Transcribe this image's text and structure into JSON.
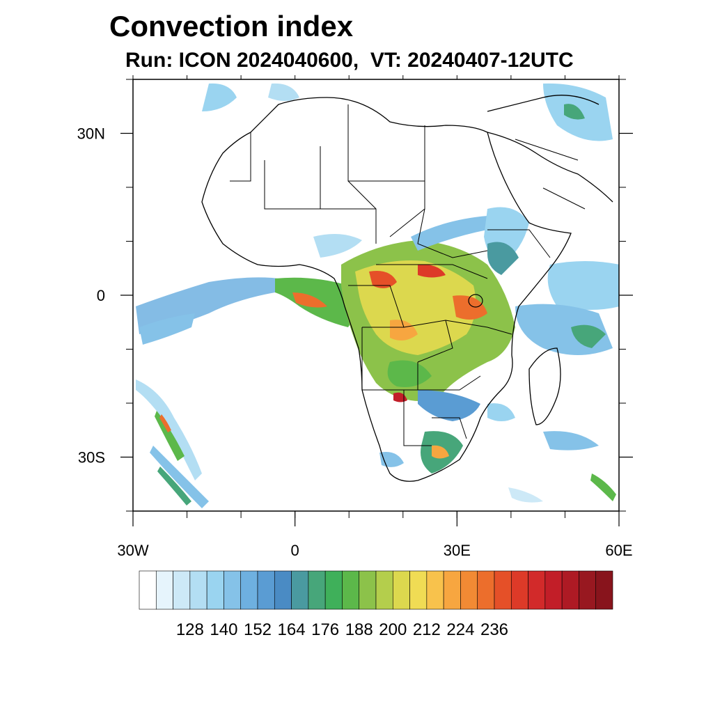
{
  "title": "Convection index",
  "subtitle": "Run: ICON 2024040600,  VT: 20240407-12UTC",
  "map": {
    "lon_range": [
      -30,
      60
    ],
    "lat_range": [
      -40,
      40
    ],
    "lat_ticks": [
      {
        "value": 30,
        "label": "30N"
      },
      {
        "value": 0,
        "label": "0"
      },
      {
        "value": -30,
        "label": "30S"
      }
    ],
    "lon_ticks": [
      {
        "value": -30,
        "label": "30W"
      },
      {
        "value": 0,
        "label": "0"
      },
      {
        "value": 30,
        "label": "30E"
      },
      {
        "value": 60,
        "label": "60E"
      }
    ]
  },
  "colorbar": {
    "colors": [
      "#ffffff",
      "#e6f4fc",
      "#cde9f7",
      "#b3def3",
      "#9ad4f0",
      "#85c2e8",
      "#6eb0e0",
      "#5a9cd3",
      "#4a8bc4",
      "#4a9aa0",
      "#47a67a",
      "#3fb05a",
      "#5cb84a",
      "#8cc24a",
      "#b4ce4c",
      "#dcd84e",
      "#f0dc54",
      "#f8c24c",
      "#f7a640",
      "#f28a34",
      "#ec6e2c",
      "#e55028",
      "#dd3a28",
      "#d22a2a",
      "#c21e28",
      "#ae1a24",
      "#981820",
      "#88141c"
    ],
    "labels": [
      "128",
      "140",
      "152",
      "164",
      "176",
      "188",
      "200",
      "212",
      "224",
      "236"
    ]
  }
}
